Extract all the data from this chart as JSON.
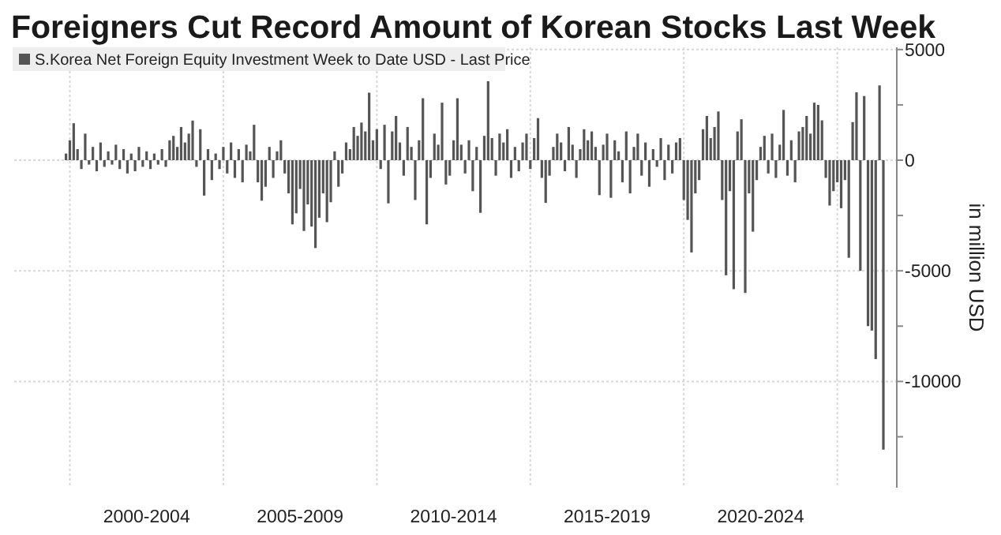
{
  "chart_data": {
    "type": "bar",
    "title": "Foreigners Cut Record Amount of Korean Stocks Last Week",
    "ylabel": "in million USD",
    "legend": "top left",
    "grid": true,
    "categories": [
      null,
      null,
      null,
      null,
      null,
      null,
      null,
      null,
      null,
      null,
      null,
      null,
      null,
      null,
      null,
      null,
      null,
      null,
      null,
      null,
      null,
      null,
      null,
      null,
      null,
      null,
      null,
      null,
      null,
      null,
      null,
      null,
      null,
      null,
      "2000-2004",
      null,
      null,
      null,
      null,
      null,
      null,
      null,
      null,
      null,
      null,
      null,
      null,
      null,
      null,
      null,
      null,
      null,
      null,
      null,
      null,
      null,
      null,
      null,
      null,
      null,
      null,
      null,
      null,
      null,
      null,
      null,
      null,
      null,
      null,
      null,
      null,
      null,
      null,
      null,
      "2005-2009",
      null,
      null,
      null,
      null,
      null,
      null,
      null,
      null,
      null,
      null,
      null,
      null,
      null,
      null,
      null,
      null,
      null,
      null,
      null,
      null,
      null,
      null,
      null,
      null,
      null,
      null,
      null,
      null,
      null,
      null,
      null,
      null,
      null,
      null,
      null,
      null,
      null,
      null,
      null,
      "2010-2014",
      null,
      null,
      null,
      null,
      null,
      null,
      null,
      null,
      null,
      null,
      null,
      null,
      null,
      null,
      null,
      null,
      null,
      null,
      null,
      null,
      null,
      null,
      null,
      null,
      null,
      null,
      null,
      null,
      null,
      null,
      null,
      null,
      null,
      null,
      null,
      null,
      null,
      null,
      null,
      "2015-2019",
      null,
      null,
      null,
      null,
      null,
      null,
      null,
      null,
      null,
      null,
      null,
      null,
      null,
      null,
      null,
      null,
      null,
      null,
      null,
      null,
      null,
      null,
      null,
      null,
      null,
      null,
      null,
      null,
      null,
      null,
      null,
      null,
      null,
      null,
      null,
      null,
      null,
      null,
      null,
      "2020-2024",
      null,
      null,
      null,
      null,
      null,
      null,
      null,
      null,
      null,
      null,
      null,
      null,
      null,
      null,
      null,
      null,
      null,
      null,
      null,
      null,
      null,
      null,
      null,
      null,
      null,
      null,
      null,
      null,
      null,
      null,
      null,
      null,
      null,
      null,
      null
    ],
    "ylim": [
      -14800,
      5100
    ],
    "yticks": [
      {
        "value": -12500,
        "label": null
      },
      -10000,
      {
        "value": -7500,
        "label": null
      },
      -5000,
      {
        "value": -2500,
        "label": null
      },
      0,
      {
        "value": 2500,
        "label": null
      },
      5000
    ],
    "series": [
      {
        "name": "S.Korea Net Foreign Equity Investment Week to Date USD - Last Price",
        "color": "#555555",
        "values": [
          null,
          null,
          null,
          null,
          null,
          null,
          null,
          null,
          null,
          null,
          null,
          null,
          null,
          300,
          900,
          1670,
          500,
          -400,
          1200,
          -200,
          600,
          -500,
          800,
          -300,
          400,
          -200,
          700,
          -400,
          500,
          -600,
          300,
          -500,
          600,
          -300,
          400,
          -400,
          300,
          -200,
          500,
          -300,
          900,
          1100,
          600,
          1500,
          800,
          1200,
          1790,
          -300,
          1400,
          -1600,
          500,
          -900,
          300,
          -400,
          600,
          -600,
          800,
          -800,
          500,
          -1000,
          700,
          400,
          1600,
          -1000,
          -1830,
          -1200,
          600,
          -800,
          400,
          900,
          -600,
          -1500,
          -2900,
          -2400,
          -1300,
          -3200,
          -2000,
          -3000,
          -3970,
          -2600,
          -1500,
          -2800,
          -1900,
          400,
          -1200,
          -600,
          800,
          500,
          1500,
          1100,
          1700,
          1300,
          3050,
          900,
          1400,
          -400,
          1600,
          -1950,
          1300,
          2000,
          800,
          -700,
          1500,
          600,
          -1800,
          900,
          2800,
          -2900,
          -800,
          1200,
          700,
          2600,
          -1100,
          -700,
          900,
          2800,
          700,
          -600,
          900,
          -1400,
          600,
          -2380,
          1100,
          3570,
          1000,
          -700,
          1200,
          800,
          1400,
          -800,
          600,
          -500,
          800,
          1200,
          -400,
          1000,
          1900,
          -800,
          -1930,
          -700,
          600,
          1200,
          800,
          -500,
          1500,
          700,
          -800,
          500,
          1400,
          900,
          1300,
          600,
          -1580,
          700,
          1200,
          -1700,
          900,
          400,
          -1000,
          1300,
          -1500,
          600,
          1200,
          -700,
          800,
          -1200,
          500,
          -300,
          1000,
          -900,
          700,
          -600,
          800,
          1000,
          -1800,
          -2700,
          -4170,
          -1500,
          -900,
          1400,
          2000,
          1000,
          1500,
          2200,
          -1800,
          -5200,
          -1400,
          -5830,
          1300,
          1850,
          -6000,
          -1500,
          -3230,
          -900,
          600,
          1100,
          -600,
          1200,
          -800,
          700,
          2270,
          -700,
          900,
          -1000,
          1300,
          1500,
          2000,
          1200,
          2600,
          2500,
          1800,
          -800,
          -2050,
          -1400,
          -1000,
          -2170,
          -900,
          -4410,
          1720,
          3070,
          -5000,
          2900,
          -7500,
          -7700,
          -8990,
          3380,
          -13080,
          null,
          null,
          null
        ]
      }
    ]
  }
}
